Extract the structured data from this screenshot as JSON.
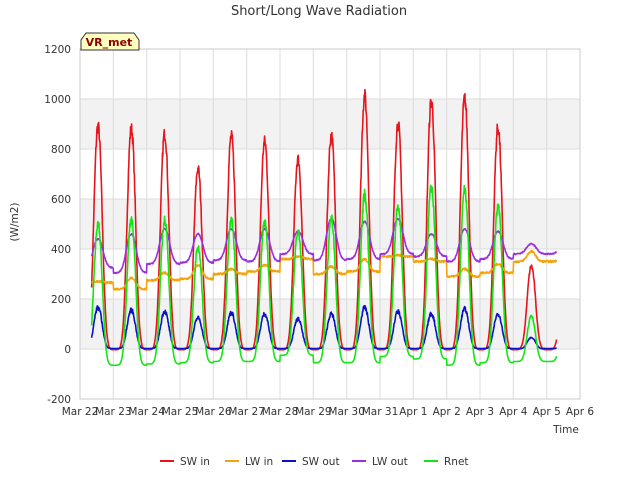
{
  "chart_data": {
    "type": "line",
    "title": "Short/Long Wave Radiation",
    "xlabel": "Time",
    "ylabel": "(W/m2)",
    "site_label": "VR_met",
    "xlim": [
      22,
      37
    ],
    "ylim": [
      -200,
      1200
    ],
    "yticks": [
      -200,
      0,
      200,
      400,
      600,
      800,
      1000,
      1200
    ],
    "ytick_labels": [
      "-200",
      "0",
      "200",
      "400",
      "600",
      "800",
      "1000",
      "1200"
    ],
    "xticks": [
      22,
      23,
      24,
      25,
      26,
      27,
      28,
      29,
      30,
      31,
      32,
      33,
      34,
      35,
      36,
      37
    ],
    "xtick_labels": [
      "Mar 22",
      "Mar 23",
      "Mar 24",
      "Mar 25",
      "Mar 26",
      "Mar 27",
      "Mar 28",
      "Mar 29",
      "Mar 30",
      "Mar 31",
      "Apr 1",
      "Apr 2",
      "Apr 3",
      "Apr 4",
      "Apr 5",
      "Apr 6"
    ],
    "grid": true,
    "legend_position": "bottom",
    "x_range_data": [
      22.35,
      36.3
    ],
    "days": [
      22,
      23,
      24,
      25,
      26,
      27,
      28,
      29,
      30,
      31,
      32,
      33,
      34,
      35
    ],
    "series": [
      {
        "name": "SW in",
        "color": "#e8141b",
        "daily_peak": [
          890,
          880,
          860,
          720,
          850,
          830,
          760,
          855,
          1010,
          900,
          990,
          1000,
          885,
          330
        ]
      },
      {
        "name": "LW in",
        "color": "#f5a30a",
        "daily_night": [
          265,
          240,
          275,
          280,
          300,
          310,
          360,
          300,
          310,
          370,
          350,
          290,
          305,
          350
        ],
        "daily_day": [
          270,
          285,
          305,
          335,
          320,
          335,
          370,
          330,
          360,
          375,
          360,
          320,
          340,
          390
        ]
      },
      {
        "name": "SW out",
        "color": "#0a12c8",
        "daily_peak": [
          165,
          155,
          150,
          125,
          145,
          140,
          120,
          140,
          165,
          150,
          140,
          160,
          140,
          45
        ]
      },
      {
        "name": "LW out",
        "color": "#9a2ee0",
        "daily_night": [
          325,
          305,
          340,
          345,
          355,
          350,
          380,
          355,
          360,
          380,
          370,
          350,
          360,
          380
        ],
        "daily_day": [
          440,
          460,
          480,
          460,
          480,
          480,
          470,
          520,
          510,
          520,
          460,
          480,
          470,
          420
        ]
      },
      {
        "name": "Rnet",
        "color": "#14e614",
        "daily_peak": [
          500,
          520,
          515,
          410,
          515,
          510,
          470,
          520,
          615,
          570,
          650,
          640,
          570,
          130
        ],
        "daily_night": [
          -65,
          -65,
          -60,
          -55,
          -50,
          -50,
          -25,
          -55,
          -55,
          -30,
          -40,
          -65,
          -55,
          -50
        ]
      }
    ]
  }
}
